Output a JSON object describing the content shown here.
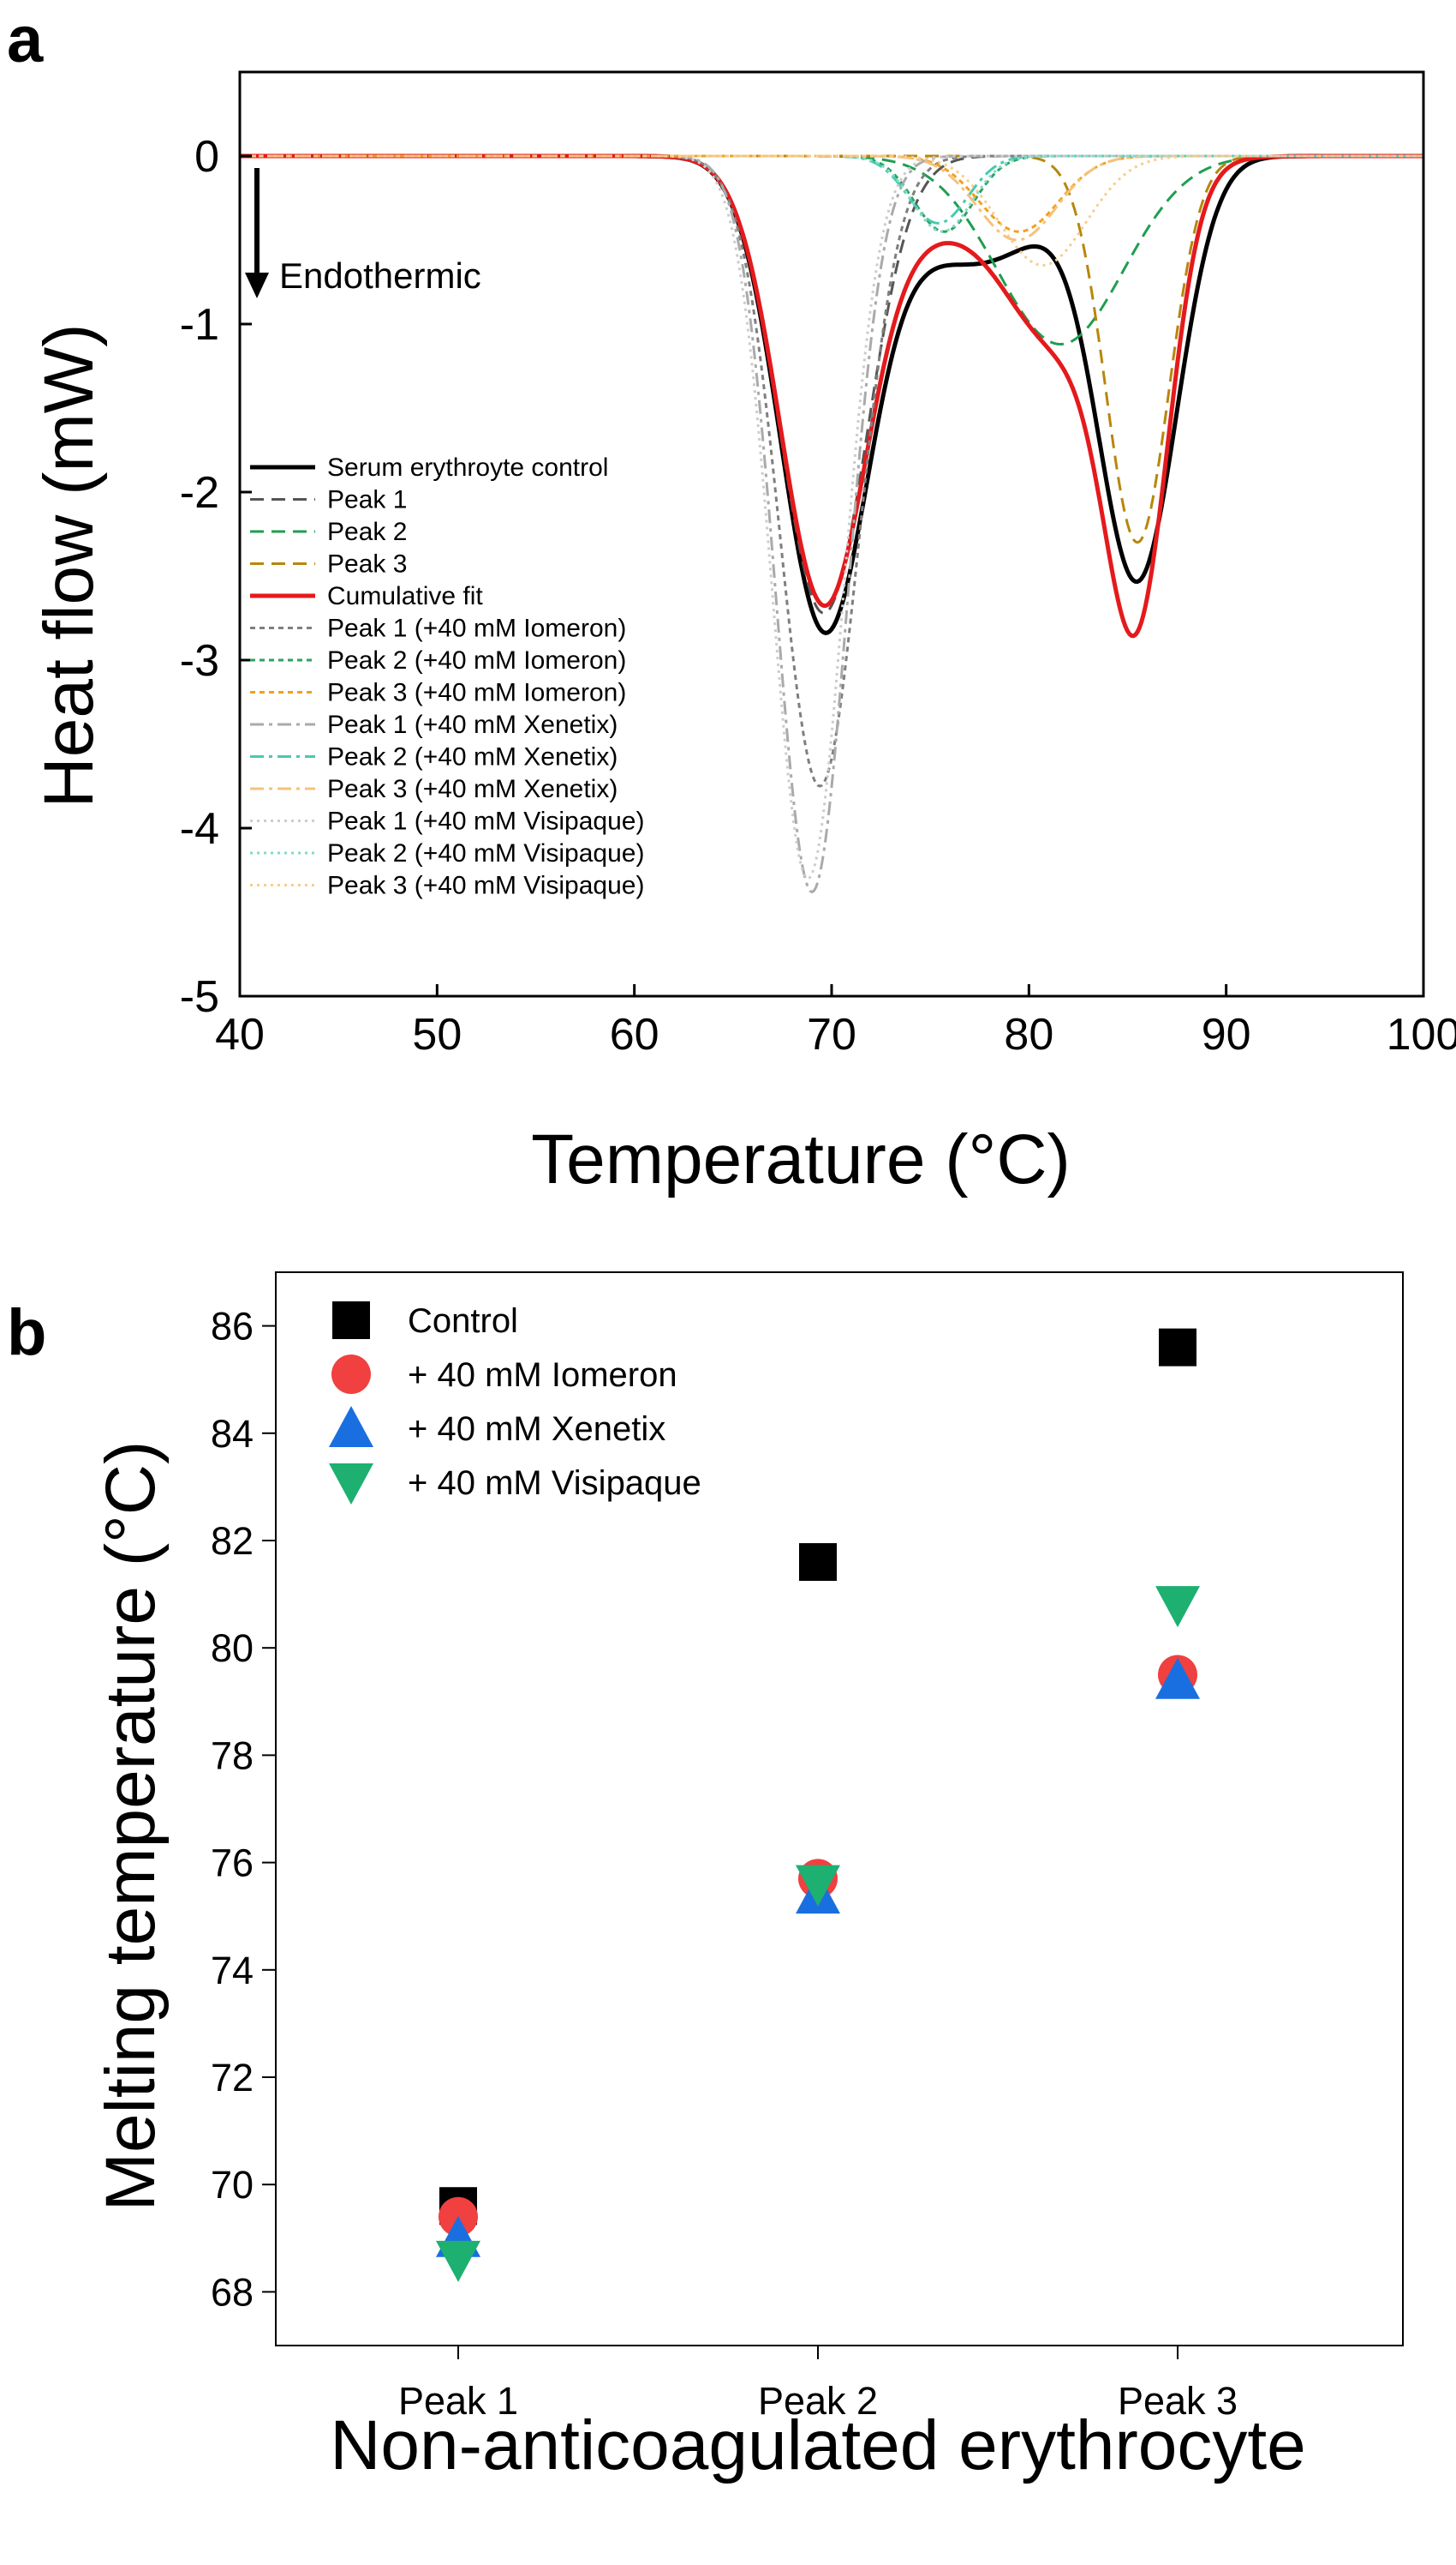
{
  "chart_data": [
    {
      "panel": "a",
      "type": "line",
      "xlabel": "Temperature (°C)",
      "ylabel": "Heat flow (mW)",
      "xlim": [
        40,
        100
      ],
      "ylim": [
        -5,
        0.5
      ],
      "xticks": [
        40,
        50,
        60,
        70,
        80,
        90,
        100
      ],
      "yticks": [
        0,
        -1,
        -2,
        -3,
        -4,
        -5
      ],
      "annotation": "Endothermic",
      "legend_position": "bottom-left",
      "series": [
        {
          "name": "Serum erythroyte control",
          "color": "#000000",
          "dash": "solid",
          "width": 5,
          "components": [
            {
              "center": 69.6,
              "amp": -2.72,
              "width": 2.2
            },
            {
              "center": 74.0,
              "amp": -0.32,
              "width": 3.0
            },
            {
              "center": 78.5,
              "amp": -0.5,
              "width": 3.0
            },
            {
              "center": 85.5,
              "amp": -2.5,
              "width": 2.0
            }
          ]
        },
        {
          "name": "Peak 1",
          "color": "#555555",
          "dash": "dash",
          "width": 3,
          "components": [
            {
              "center": 69.6,
              "amp": -2.72,
              "width": 2.2
            }
          ]
        },
        {
          "name": "Peak 2",
          "color": "#1f9e50",
          "dash": "dash",
          "width": 3,
          "components": [
            {
              "center": 81.6,
              "amp": -1.12,
              "width": 3.2
            }
          ]
        },
        {
          "name": "Peak 3",
          "color": "#b8860b",
          "dash": "dash",
          "width": 3,
          "components": [
            {
              "center": 85.5,
              "amp": -2.3,
              "width": 1.6
            }
          ]
        },
        {
          "name": "Cumulative fit",
          "color": "#e41a1c",
          "dash": "solid",
          "width": 5,
          "components": [
            {
              "center": 69.6,
              "amp": -2.65,
              "width": 2.2
            },
            {
              "center": 74.5,
              "amp": -0.3,
              "width": 2.2
            },
            {
              "center": 81.6,
              "amp": -1.12,
              "width": 3.2
            },
            {
              "center": 85.5,
              "amp": -2.3,
              "width": 1.6
            }
          ]
        },
        {
          "name": "Peak 1 (+40 mM Iomeron)",
          "color": "#7f7f7f",
          "dash": "dot",
          "width": 3,
          "components": [
            {
              "center": 69.4,
              "amp": -3.75,
              "width": 2.0
            }
          ]
        },
        {
          "name": "Peak 2 (+40 mM Iomeron)",
          "color": "#2ca25f",
          "dash": "dot",
          "width": 3,
          "components": [
            {
              "center": 75.7,
              "amp": -0.45,
              "width": 1.5
            }
          ]
        },
        {
          "name": "Peak 3 (+40 mM Iomeron)",
          "color": "#f0a020",
          "dash": "dot",
          "width": 3,
          "components": [
            {
              "center": 79.5,
              "amp": -0.45,
              "width": 2.0
            }
          ]
        },
        {
          "name": "Peak 1 (+40 mM Xenetix)",
          "color": "#aaaaaa",
          "dash": "dashdot",
          "width": 3,
          "components": [
            {
              "center": 69.0,
              "amp": -4.38,
              "width": 1.8
            }
          ]
        },
        {
          "name": "Peak 2 (+40 mM Xenetix)",
          "color": "#48c9b0",
          "dash": "dashdot",
          "width": 3,
          "components": [
            {
              "center": 75.4,
              "amp": -0.4,
              "width": 1.5
            }
          ]
        },
        {
          "name": "Peak 3 (+40 mM Xenetix)",
          "color": "#f5c27a",
          "dash": "dashdot",
          "width": 3,
          "components": [
            {
              "center": 79.4,
              "amp": -0.5,
              "width": 2.0
            }
          ]
        },
        {
          "name": "Peak 1 (+40 mM Visipaque)",
          "color": "#cccccc",
          "dash": "fine",
          "width": 3,
          "components": [
            {
              "center": 68.8,
              "amp": -4.3,
              "width": 1.8
            }
          ]
        },
        {
          "name": "Peak 2 (+40 mM Visipaque)",
          "color": "#7fdcc8",
          "dash": "fine",
          "width": 3,
          "components": [
            {
              "center": 75.6,
              "amp": -0.45,
              "width": 1.5
            }
          ]
        },
        {
          "name": "Peak 3 (+40 mM Visipaque)",
          "color": "#f7cd8f",
          "dash": "fine",
          "width": 3,
          "components": [
            {
              "center": 80.7,
              "amp": -0.65,
              "width": 2.2
            }
          ]
        }
      ]
    },
    {
      "panel": "b",
      "type": "scatter",
      "xlabel": "Non-anticoagulated erythrocyte",
      "ylabel": "Melting temperature (°C)",
      "categories": [
        "Peak 1",
        "Peak 2",
        "Peak 3"
      ],
      "ylim": [
        67,
        87
      ],
      "yticks": [
        68,
        70,
        72,
        74,
        76,
        78,
        80,
        82,
        84,
        86
      ],
      "legend_position": "top-left",
      "series": [
        {
          "name": "Control",
          "marker": "square",
          "color": "#000000",
          "values": [
            69.6,
            81.6,
            85.6
          ]
        },
        {
          "name": "+ 40 mM Iomeron",
          "marker": "circle",
          "color": "#f04040",
          "values": [
            69.4,
            75.7,
            79.5
          ]
        },
        {
          "name": "+ 40 mM Xenetix",
          "marker": "triangle-up",
          "color": "#1a6fe0",
          "values": [
            69.0,
            75.4,
            79.4
          ]
        },
        {
          "name": "+ 40 mM Visipaque",
          "marker": "triangle-down",
          "color": "#1db070",
          "values": [
            68.6,
            75.6,
            80.8
          ]
        }
      ]
    }
  ]
}
